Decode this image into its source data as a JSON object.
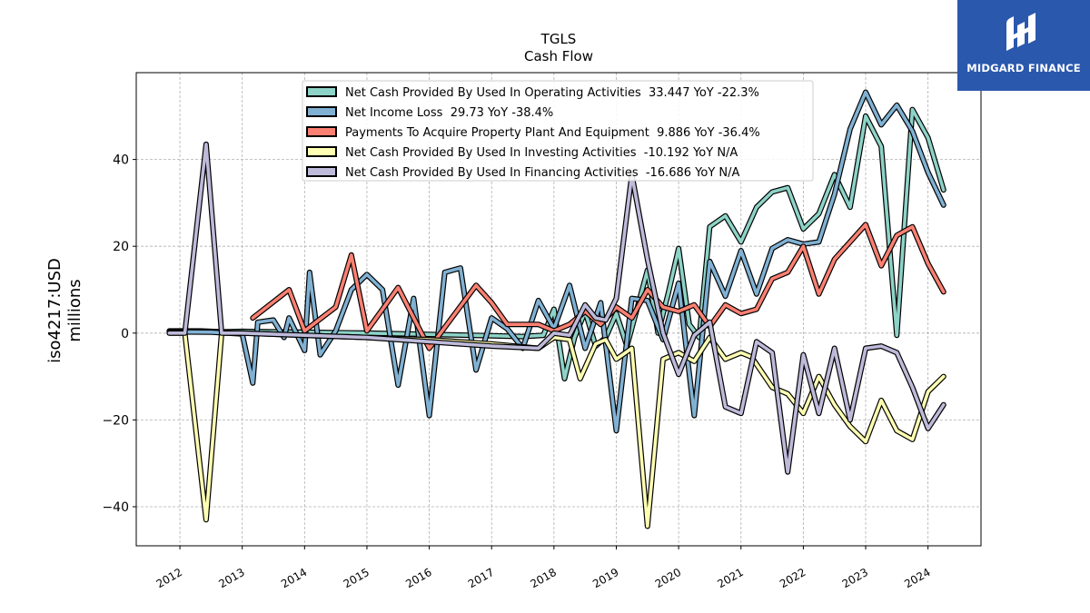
{
  "logo": {
    "text": "MIDGARD FINANCE"
  },
  "chart_data": {
    "type": "line",
    "title": "TGLS",
    "subtitle": "Cash Flow",
    "ylabel": "iso4217:USD",
    "ylabel2": "millions",
    "xlabel": "",
    "xlim": [
      2011.3,
      2024.85
    ],
    "ylim": [
      -49,
      60
    ],
    "xticks": [
      2012,
      2013,
      2014,
      2015,
      2016,
      2017,
      2018,
      2019,
      2020,
      2021,
      2022,
      2023,
      2024
    ],
    "xtick_labels": [
      "2012",
      "2013",
      "2014",
      "2015",
      "2016",
      "2017",
      "2018",
      "2019",
      "2020",
      "2021",
      "2022",
      "2023",
      "2024"
    ],
    "yticks": [
      -40,
      -20,
      0,
      20,
      40
    ],
    "ytick_labels": [
      "−40",
      "−20",
      "0",
      "20",
      "40"
    ],
    "grid": true,
    "legend_position": "top-center",
    "series": [
      {
        "name": "Net Cash Provided By Used In Operating Activities",
        "legend": "Net Cash Provided By Used In Operating Activities  33.447 YoY -22.3%",
        "color": "#8dd3c7",
        "points": [
          [
            2011.83,
            0.5
          ],
          [
            2012.08,
            0.5
          ],
          [
            2012.33,
            0.5
          ],
          [
            2012.67,
            0.3
          ],
          [
            2013.0,
            0.4
          ],
          [
            2013.5,
            0.3
          ],
          [
            2014.0,
            0.2
          ],
          [
            2015.0,
            0.0
          ],
          [
            2016.0,
            -0.3
          ],
          [
            2017.0,
            -0.6
          ],
          [
            2017.5,
            -0.8
          ],
          [
            2017.83,
            -0.5
          ],
          [
            2018.0,
            5.5
          ],
          [
            2018.17,
            -10.5
          ],
          [
            2018.33,
            -1.0
          ],
          [
            2018.5,
            5.0
          ],
          [
            2018.67,
            -3.0
          ],
          [
            2018.83,
            -1.0
          ],
          [
            2019.0,
            4.5
          ],
          [
            2019.17,
            -3.0
          ],
          [
            2019.5,
            14.5
          ],
          [
            2019.67,
            0.0
          ],
          [
            2019.83,
            9.0
          ],
          [
            2020.0,
            19.5
          ],
          [
            2020.17,
            2.0
          ],
          [
            2020.33,
            -1.0
          ],
          [
            2020.5,
            24.5
          ],
          [
            2020.75,
            27.0
          ],
          [
            2021.0,
            21.0
          ],
          [
            2021.25,
            29.0
          ],
          [
            2021.5,
            32.5
          ],
          [
            2021.75,
            33.5
          ],
          [
            2022.0,
            24.0
          ],
          [
            2022.25,
            27.5
          ],
          [
            2022.5,
            36.5
          ],
          [
            2022.75,
            29.0
          ],
          [
            2023.0,
            50.0
          ],
          [
            2023.25,
            43.0
          ],
          [
            2023.5,
            -0.5
          ],
          [
            2023.75,
            51.5
          ],
          [
            2024.0,
            45.0
          ],
          [
            2024.25,
            33.0
          ]
        ]
      },
      {
        "name": "Net Income Loss",
        "legend": "Net Income Loss  29.73 YoY -38.4%",
        "color": "#80b1d3",
        "points": [
          [
            2011.83,
            0.3
          ],
          [
            2012.5,
            0.2
          ],
          [
            2013.0,
            -0.2
          ],
          [
            2013.17,
            -11.5
          ],
          [
            2013.25,
            2.5
          ],
          [
            2013.5,
            3.0
          ],
          [
            2013.67,
            -1.0
          ],
          [
            2013.75,
            3.5
          ],
          [
            2014.0,
            -4.0
          ],
          [
            2014.08,
            14.0
          ],
          [
            2014.25,
            -5.0
          ],
          [
            2014.5,
            0.5
          ],
          [
            2014.75,
            10.0
          ],
          [
            2015.0,
            13.5
          ],
          [
            2015.25,
            10.0
          ],
          [
            2015.5,
            -12.0
          ],
          [
            2015.75,
            8.0
          ],
          [
            2016.0,
            -19.0
          ],
          [
            2016.25,
            14.0
          ],
          [
            2016.5,
            15.0
          ],
          [
            2016.75,
            -8.5
          ],
          [
            2017.0,
            3.5
          ],
          [
            2017.25,
            1.0
          ],
          [
            2017.5,
            -3.5
          ],
          [
            2017.75,
            7.5
          ],
          [
            2018.0,
            1.0
          ],
          [
            2018.25,
            11.0
          ],
          [
            2018.5,
            -3.5
          ],
          [
            2018.75,
            7.0
          ],
          [
            2019.0,
            -22.5
          ],
          [
            2019.25,
            8.0
          ],
          [
            2019.5,
            7.5
          ],
          [
            2019.75,
            -1.5
          ],
          [
            2020.0,
            11.5
          ],
          [
            2020.25,
            -19.0
          ],
          [
            2020.5,
            16.5
          ],
          [
            2020.75,
            8.5
          ],
          [
            2021.0,
            19.0
          ],
          [
            2021.25,
            9.0
          ],
          [
            2021.5,
            19.5
          ],
          [
            2021.75,
            21.5
          ],
          [
            2022.0,
            20.5
          ],
          [
            2022.25,
            21.0
          ],
          [
            2022.5,
            32.0
          ],
          [
            2022.75,
            47.0
          ],
          [
            2023.0,
            55.5
          ],
          [
            2023.25,
            48.0
          ],
          [
            2023.5,
            52.5
          ],
          [
            2023.75,
            46.5
          ],
          [
            2024.0,
            37.0
          ],
          [
            2024.25,
            29.5
          ]
        ]
      },
      {
        "name": "Payments To Acquire Property Plant And Equipment",
        "legend": "Payments To Acquire Property Plant And Equipment  9.886 YoY -36.4%",
        "color": "#fb8072",
        "points": [
          [
            2013.17,
            3.5
          ],
          [
            2013.75,
            10.0
          ],
          [
            2014.0,
            0.5
          ],
          [
            2014.5,
            6.0
          ],
          [
            2014.75,
            18.0
          ],
          [
            2015.0,
            0.5
          ],
          [
            2015.5,
            10.5
          ],
          [
            2016.0,
            -3.5
          ],
          [
            2016.75,
            11.0
          ],
          [
            2017.0,
            7.0
          ],
          [
            2017.25,
            2.0
          ],
          [
            2017.75,
            2.0
          ],
          [
            2018.0,
            0.5
          ],
          [
            2018.25,
            2.0
          ],
          [
            2018.5,
            5.0
          ],
          [
            2018.75,
            2.0
          ],
          [
            2019.0,
            6.0
          ],
          [
            2019.25,
            3.5
          ],
          [
            2019.5,
            10.0
          ],
          [
            2019.75,
            6.0
          ],
          [
            2020.0,
            5.0
          ],
          [
            2020.25,
            6.5
          ],
          [
            2020.5,
            1.5
          ],
          [
            2020.75,
            6.5
          ],
          [
            2021.0,
            4.5
          ],
          [
            2021.25,
            5.5
          ],
          [
            2021.5,
            12.5
          ],
          [
            2021.75,
            14.0
          ],
          [
            2022.0,
            20.0
          ],
          [
            2022.25,
            9.0
          ],
          [
            2022.5,
            17.0
          ],
          [
            2022.75,
            21.0
          ],
          [
            2023.0,
            25.0
          ],
          [
            2023.25,
            15.5
          ],
          [
            2023.5,
            22.5
          ],
          [
            2023.75,
            24.5
          ],
          [
            2024.0,
            16.0
          ],
          [
            2024.25,
            9.5
          ]
        ]
      },
      {
        "name": "Net Cash Provided By Used In Investing Activities",
        "legend": "Net Cash Provided By Used In Investing Activities  -10.192 YoY N/A",
        "color": "#ffffb3",
        "points": [
          [
            2011.83,
            0.0
          ],
          [
            2012.08,
            0.0
          ],
          [
            2012.42,
            -43.0
          ],
          [
            2012.67,
            0.0
          ],
          [
            2013.0,
            0.0
          ],
          [
            2014.0,
            -0.5
          ],
          [
            2015.0,
            -1.0
          ],
          [
            2016.0,
            -1.5
          ],
          [
            2017.0,
            -2.5
          ],
          [
            2017.75,
            -3.5
          ],
          [
            2018.0,
            -1.0
          ],
          [
            2018.25,
            -1.5
          ],
          [
            2018.42,
            -10.5
          ],
          [
            2018.67,
            -2.5
          ],
          [
            2018.83,
            -1.5
          ],
          [
            2019.0,
            -6.0
          ],
          [
            2019.25,
            -3.5
          ],
          [
            2019.5,
            -44.5
          ],
          [
            2019.75,
            -6.0
          ],
          [
            2020.0,
            -4.5
          ],
          [
            2020.25,
            -6.5
          ],
          [
            2020.5,
            -1.0
          ],
          [
            2020.75,
            -6.0
          ],
          [
            2021.0,
            -4.5
          ],
          [
            2021.17,
            -5.5
          ],
          [
            2021.5,
            -12.5
          ],
          [
            2021.75,
            -14.0
          ],
          [
            2022.0,
            -18.5
          ],
          [
            2022.25,
            -10.0
          ],
          [
            2022.5,
            -16.5
          ],
          [
            2022.75,
            -21.5
          ],
          [
            2023.0,
            -25.0
          ],
          [
            2023.25,
            -15.5
          ],
          [
            2023.5,
            -22.5
          ],
          [
            2023.75,
            -24.5
          ],
          [
            2024.0,
            -13.5
          ],
          [
            2024.25,
            -10.0
          ]
        ]
      },
      {
        "name": "Net Cash Provided By Used In Financing Activities",
        "legend": "Net Cash Provided By Used In Financing Activities  -16.686 YoY N/A",
        "color": "#bebada",
        "points": [
          [
            2011.83,
            0.0
          ],
          [
            2012.08,
            0.0
          ],
          [
            2012.42,
            43.5
          ],
          [
            2012.67,
            0.0
          ],
          [
            2013.0,
            0.0
          ],
          [
            2014.0,
            -0.5
          ],
          [
            2015.0,
            -1.0
          ],
          [
            2016.0,
            -2.0
          ],
          [
            2017.0,
            -3.0
          ],
          [
            2017.75,
            -3.5
          ],
          [
            2018.0,
            0.0
          ],
          [
            2018.25,
            -0.5
          ],
          [
            2018.5,
            6.5
          ],
          [
            2018.67,
            3.5
          ],
          [
            2018.83,
            3.0
          ],
          [
            2019.0,
            8.0
          ],
          [
            2019.25,
            36.5
          ],
          [
            2019.5,
            17.0
          ],
          [
            2019.75,
            0.0
          ],
          [
            2020.0,
            -9.5
          ],
          [
            2020.25,
            -0.5
          ],
          [
            2020.5,
            2.5
          ],
          [
            2020.75,
            -17.0
          ],
          [
            2021.0,
            -18.5
          ],
          [
            2021.25,
            -2.0
          ],
          [
            2021.5,
            -4.5
          ],
          [
            2021.75,
            -32.0
          ],
          [
            2022.0,
            -5.0
          ],
          [
            2022.25,
            -18.5
          ],
          [
            2022.5,
            -3.5
          ],
          [
            2022.75,
            -20.0
          ],
          [
            2023.0,
            -3.5
          ],
          [
            2023.25,
            -3.0
          ],
          [
            2023.5,
            -4.5
          ],
          [
            2023.75,
            -12.5
          ],
          [
            2024.0,
            -22.0
          ],
          [
            2024.25,
            -16.5
          ]
        ]
      }
    ]
  }
}
